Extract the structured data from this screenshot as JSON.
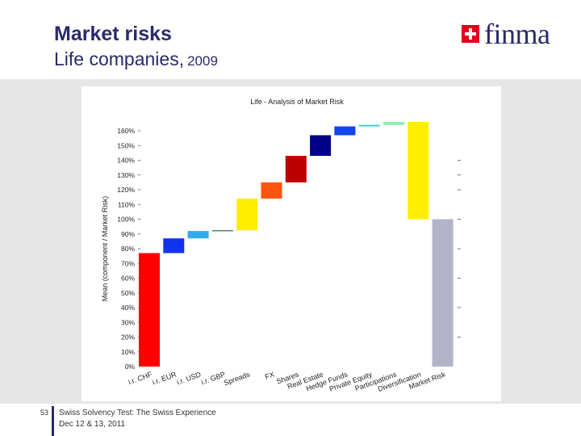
{
  "slide": {
    "title": "Market risks",
    "subtitle": "Life companies,",
    "year": "2009",
    "logo_text": "finma",
    "page_number": "53",
    "footer_line1": "Swiss Solvency Test: The Swiss Experience",
    "footer_line2": "Dec 12 & 13, 2011"
  },
  "chart_data": {
    "type": "bar",
    "subtype": "waterfall",
    "title": "Life - Analysis of Market Risk",
    "ylabel": "Mean (component / Market Risk)",
    "xlabel": "",
    "ylim": [
      0,
      160
    ],
    "yticks": [
      "0%",
      "10%",
      "20%",
      "30%",
      "40%",
      "50%",
      "60%",
      "70%",
      "80%",
      "90%",
      "100%",
      "110%",
      "120%",
      "130%",
      "140%",
      "150%",
      "160%"
    ],
    "categories": [
      "i.r. CHF",
      "i.r. EUR",
      "i.r. USD",
      "i.r. GBP",
      "Spreads",
      "FX",
      "Shares",
      "Real Estate",
      "Hedge Funds",
      "Private Equity",
      "Participations",
      "Diversification",
      "Market Risk"
    ],
    "bars": [
      {
        "label": "i.r. CHF",
        "start": 0,
        "end": 77,
        "color": "#ff0000"
      },
      {
        "label": "i.r. EUR",
        "start": 77,
        "end": 87,
        "color": "#1133ee"
      },
      {
        "label": "i.r. USD",
        "start": 87,
        "end": 92,
        "color": "#33aaee"
      },
      {
        "label": "i.r. GBP",
        "start": 92,
        "end": 92.5,
        "color": "#226655"
      },
      {
        "label": "Spreads",
        "start": 92.5,
        "end": 114,
        "color": "#ffee00"
      },
      {
        "label": "FX",
        "start": 114,
        "end": 125,
        "color": "#ff5511"
      },
      {
        "label": "Shares",
        "start": 125,
        "end": 143,
        "color": "#bb0000"
      },
      {
        "label": "Real Estate",
        "start": 143,
        "end": 157,
        "color": "#000088"
      },
      {
        "label": "Hedge Funds",
        "start": 157,
        "end": 163,
        "color": "#1144ee"
      },
      {
        "label": "Private Equity",
        "start": 163,
        "end": 164,
        "color": "#33cccc"
      },
      {
        "label": "Participations",
        "start": 164,
        "end": 166,
        "color": "#88eeaa"
      },
      {
        "label": "Diversification",
        "start": 100,
        "end": 166,
        "color": "#ffee00"
      },
      {
        "label": "Market Risk",
        "start": 0,
        "end": 100,
        "color": "#b3b3cc"
      }
    ],
    "grid": false,
    "right_tick_values": [
      20,
      40,
      60,
      80,
      100,
      120,
      130,
      140
    ]
  }
}
